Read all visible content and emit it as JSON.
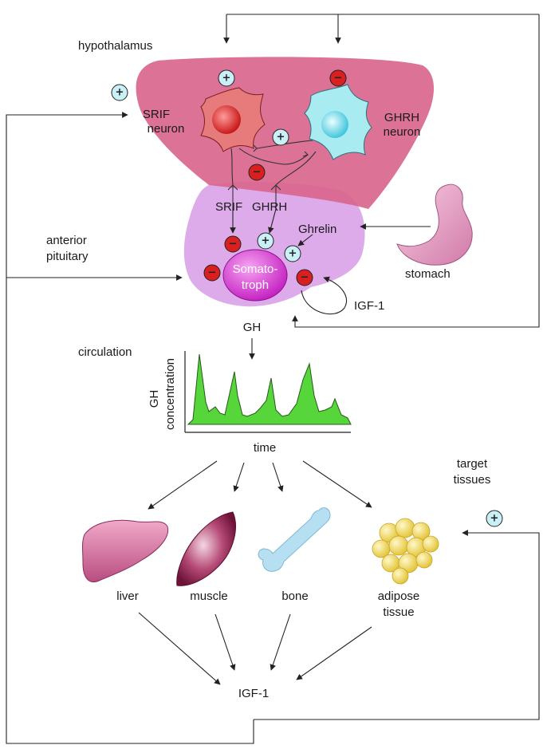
{
  "labels": {
    "hypothalamus": "hypothalamus",
    "srif_neuron_line1": "SRIF",
    "srif_neuron_line2": "neuron",
    "ghrh_neuron_line1": "GHRH",
    "ghrh_neuron_line2": "neuron",
    "srif": "SRIF",
    "ghrh": "GHRH",
    "ghrelin": "Ghrelin",
    "anterior_line1": "anterior",
    "anterior_line2": "pituitary",
    "somato_line1": "Somato-",
    "somato_line2": "troph",
    "stomach": "stomach",
    "igf1_feedback": "IGF-1",
    "gh": "GH",
    "circulation": "circulation",
    "ylabel_line1": "GH",
    "ylabel_line2": "concentration",
    "xlabel": "time",
    "target_line1": "target",
    "target_line2": "tissues",
    "liver": "liver",
    "muscle": "muscle",
    "bone": "bone",
    "adipose_line1": "adipose",
    "adipose_line2": "tissue",
    "igf1_bottom": "IGF-1"
  },
  "signs": {
    "plus": "+",
    "minus": "−"
  },
  "colors": {
    "hypothalamus": "#d9668c",
    "pituitary": "#d79be6",
    "somatotroph": "#d42bd0",
    "srif_neuron": "#e77b7b",
    "ghrh_neuron": "#a8ecf2",
    "plus_circle": "#c8f0f6",
    "minus_circle": "#d92020",
    "pulse_fill": "#56d63b",
    "liver": "#d97aa6",
    "muscle": "#9c2a55",
    "bone": "#b7dff2",
    "adipose": "#f2dd5c",
    "stomach": "#e8a2c6"
  }
}
